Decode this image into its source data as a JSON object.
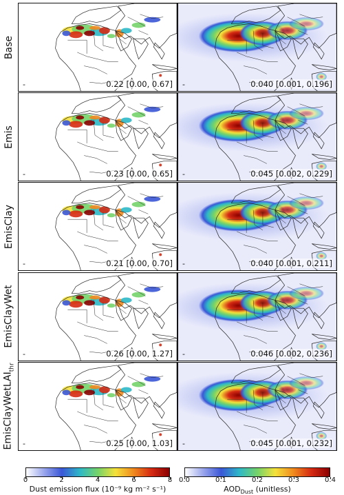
{
  "rows": [
    {
      "label": "Base",
      "emission_stat": "0.22 [0.00, 0.67]",
      "aod_stat": "0.040 [0.001, 0.196]"
    },
    {
      "label": "Emis",
      "emission_stat": "0.23 [0.00, 0.65]",
      "aod_stat": "0.045 [0.002, 0.229]"
    },
    {
      "label": "EmisClay",
      "emission_stat": "0.21 [0.00, 0.70]",
      "aod_stat": "0.040 [0.001, 0.211]"
    },
    {
      "label": "EmisClayWet",
      "emission_stat": "0.26 [0.00, 1.27]",
      "aod_stat": "0.046 [0.002, 0.236]"
    },
    {
      "label": "EmisClayWetLAI",
      "label_sub": "thr",
      "emission_stat": "0.25 [0.00, 1.03]",
      "aod_stat": "0.045 [0.001, 0.232]"
    }
  ],
  "panel_corner_mark": "-",
  "colorbars": {
    "emission": {
      "ticks": [
        "0",
        "2",
        "4",
        "6",
        "8"
      ],
      "label": "Dust emission flux (10⁻⁹ kg m⁻² s⁻¹)"
    },
    "aod": {
      "ticks": [
        "0.0",
        "0.1",
        "0.2",
        "0.3",
        "0.4"
      ],
      "label_main": "AOD",
      "label_sub": "Dust",
      "label_rest": " (unitless)"
    }
  },
  "colors": {
    "gradient": [
      "#ffffff",
      "#9aa6ec",
      "#3a57d6",
      "#2eb8c8",
      "#74d36a",
      "#f4e13a",
      "#f08a1e",
      "#d52a12",
      "#8b0000"
    ],
    "map_outline": "#222222",
    "emission_background": "#ffffff",
    "aod_background": "#e9ebfb"
  }
}
